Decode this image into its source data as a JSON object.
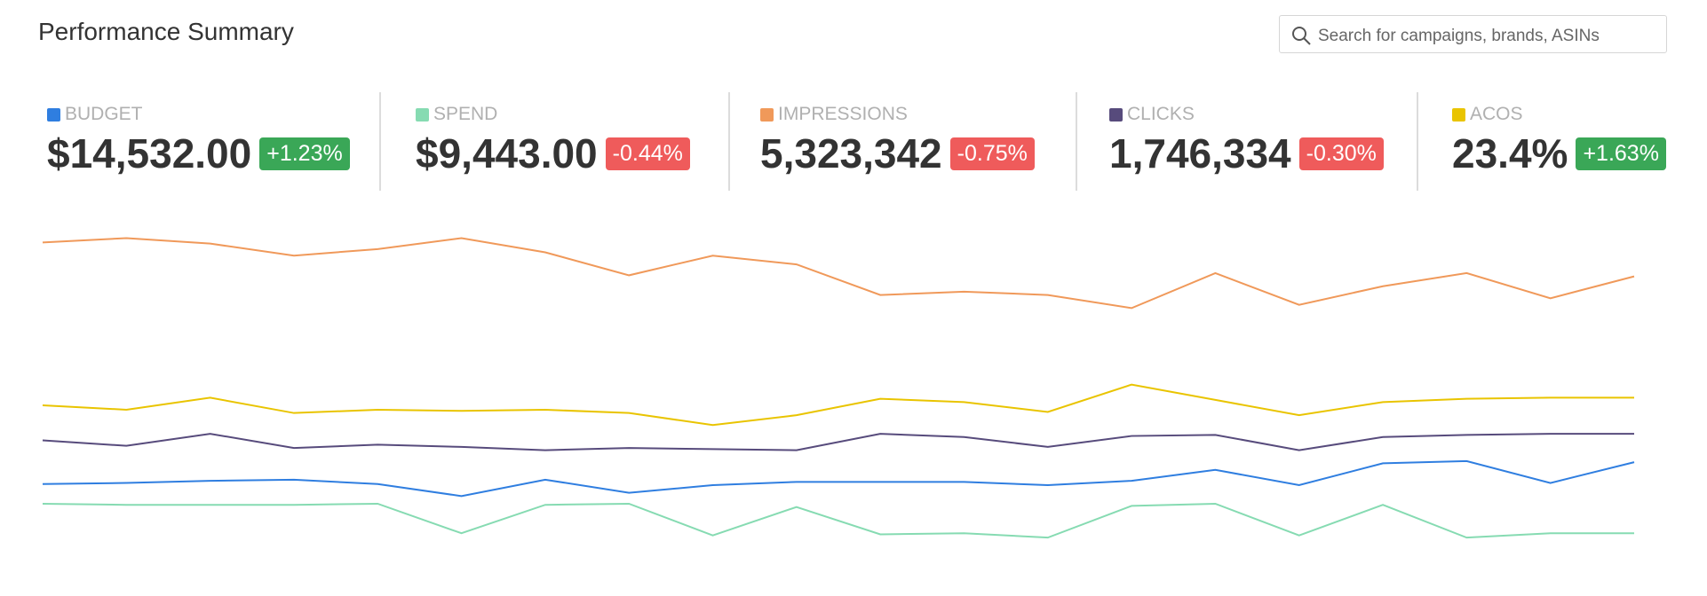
{
  "header": {
    "title": "Performance Summary",
    "search_placeholder": "Search for campaigns, brands, ASINs"
  },
  "metrics": [
    {
      "label": "BUDGET",
      "value": "$14,532.00",
      "change": "+1.23%",
      "color": "#2f7ee0",
      "badge_color": "#3aa757"
    },
    {
      "label": "SPEND",
      "value": "$9,443.00",
      "change": "-0.44%",
      "color": "#86dbb2",
      "badge_color": "#ef5b5b"
    },
    {
      "label": "IMPRESSIONS",
      "value": "5,323,342",
      "change": "-0.75%",
      "color": "#f0995a",
      "badge_color": "#ef5b5b"
    },
    {
      "label": "CLICKS",
      "value": "1,746,334",
      "change": "-0.30%",
      "color": "#574b7c",
      "badge_color": "#ef5b5b"
    },
    {
      "label": "ACOS",
      "value": "23.4%",
      "change": "+1.63%",
      "color": "#e9c400",
      "badge_color": "#3aa757"
    }
  ],
  "chart_data": {
    "type": "line",
    "categories": [
      null,
      null,
      null,
      null,
      null,
      null,
      null,
      null,
      null,
      null,
      null,
      null,
      null,
      null,
      null,
      null,
      null,
      null,
      null,
      null
    ],
    "ylim": [
      0,
      340
    ],
    "series": [
      {
        "color": "#f0995a",
        "values": [
          308,
          312,
          307,
          296,
          302,
          312,
          299,
          278,
          296,
          288,
          260,
          263,
          260,
          248,
          280,
          251,
          268,
          280,
          257,
          277
        ]
      },
      {
        "color": "#e9c400",
        "values": [
          159,
          155,
          166,
          152,
          155,
          154,
          155,
          152,
          141,
          150,
          165,
          162,
          153,
          178,
          164,
          150,
          162,
          165,
          166,
          166
        ]
      },
      {
        "color": "#574b7c",
        "values": [
          127,
          122,
          133,
          120,
          123,
          121,
          118,
          120,
          119,
          118,
          133,
          130,
          121,
          131,
          132,
          118,
          130,
          132,
          133,
          133
        ]
      },
      {
        "color": "#2f7ee0",
        "values": [
          87,
          88,
          90,
          91,
          87,
          76,
          91,
          79,
          86,
          89,
          89,
          89,
          86,
          90,
          100,
          86,
          106,
          108,
          88,
          107
        ]
      },
      {
        "color": "#86dbb2",
        "values": [
          69,
          68,
          68,
          68,
          69,
          42,
          68,
          69,
          40,
          66,
          41,
          42,
          38,
          67,
          69,
          40,
          68,
          38,
          42,
          42
        ]
      }
    ]
  }
}
